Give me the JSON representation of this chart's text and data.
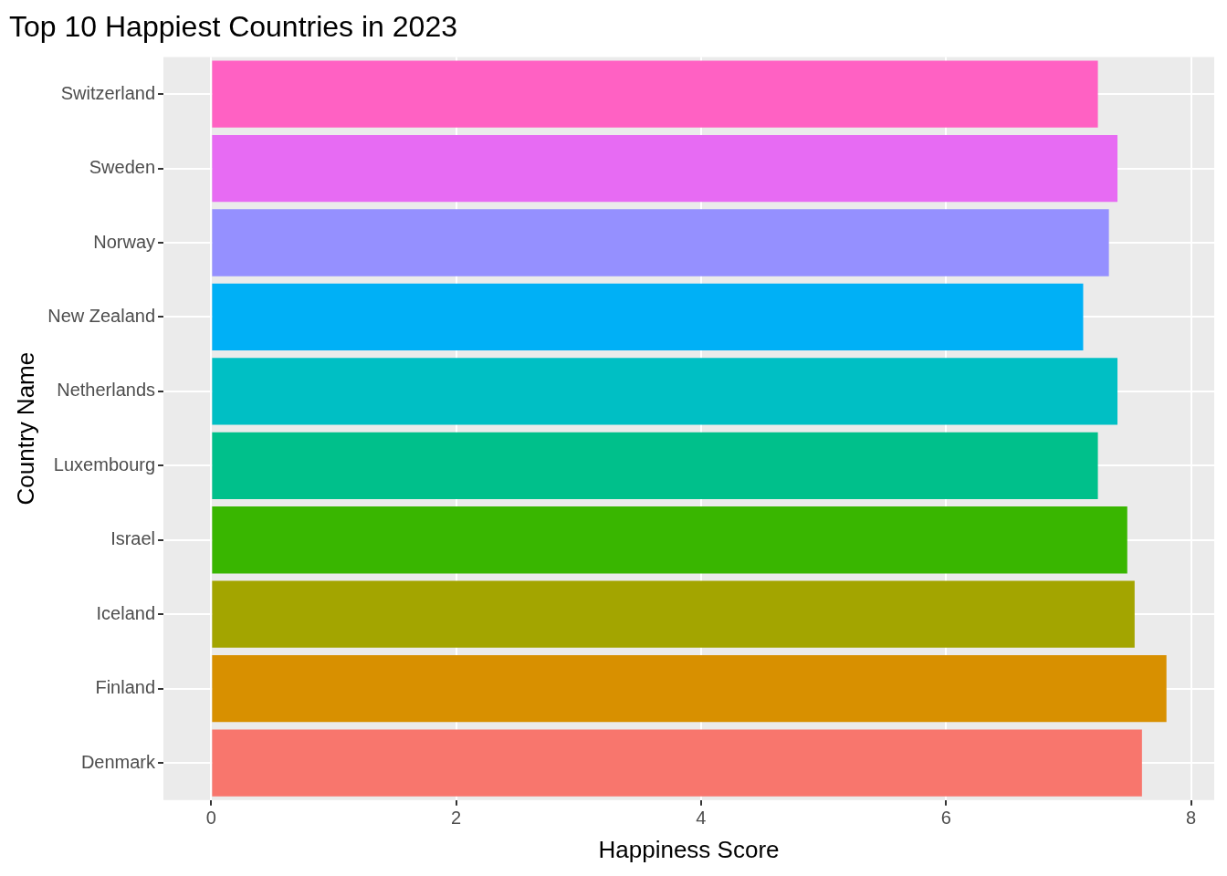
{
  "chart_data": {
    "type": "bar",
    "orientation": "horizontal",
    "title": "Top 10 Happiest Countries in 2023",
    "xlabel": "Happiness Score",
    "ylabel": "Country Name",
    "categories": [
      "Switzerland",
      "Sweden",
      "Norway",
      "New Zealand",
      "Netherlands",
      "Luxembourg",
      "Israel",
      "Iceland",
      "Finland",
      "Denmark"
    ],
    "values": [
      7.24,
      7.4,
      7.33,
      7.12,
      7.4,
      7.24,
      7.48,
      7.54,
      7.8,
      7.6
    ],
    "colors": [
      "#ff61c3",
      "#e76bf3",
      "#9590ff",
      "#00b0f6",
      "#00bfc4",
      "#00c08b",
      "#39b600",
      "#a3a500",
      "#d89000",
      "#f8766d"
    ],
    "xlim": [
      -0.39,
      8.19
    ],
    "xticks": [
      0,
      2,
      4,
      6,
      8
    ],
    "grid": true
  }
}
